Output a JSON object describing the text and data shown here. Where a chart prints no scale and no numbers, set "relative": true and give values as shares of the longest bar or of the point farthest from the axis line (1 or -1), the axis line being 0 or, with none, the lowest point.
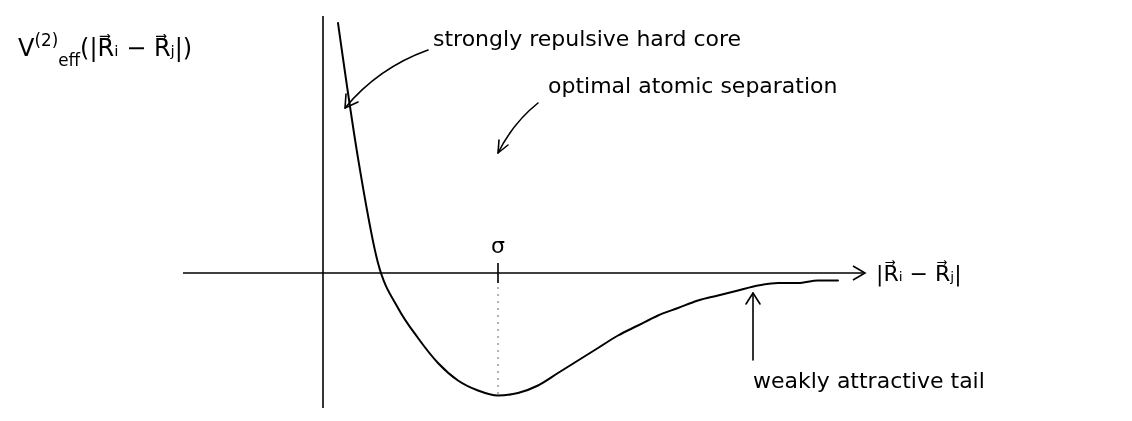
{
  "chart_data": {
    "type": "line",
    "relative": true,
    "categories": [
      null,
      null,
      null,
      null,
      null,
      null,
      null,
      null,
      null,
      null,
      null,
      null,
      null,
      null,
      null,
      null,
      null,
      null,
      null,
      null,
      null,
      null,
      null,
      null,
      null,
      null
    ],
    "series": [
      {
        "color": "#000000",
        "values": [
          1.0,
          0.46,
          0.04,
          -0.14,
          -0.26,
          -0.36,
          -0.43,
          -0.47,
          -0.49,
          -0.48,
          -0.45,
          -0.4,
          -0.35,
          -0.3,
          -0.25,
          -0.21,
          -0.17,
          -0.14,
          -0.11,
          -0.09,
          -0.07,
          -0.05,
          -0.04,
          -0.04,
          -0.03,
          -0.03
        ]
      }
    ],
    "xlabel": "|R⃗ᵢ − R⃗ⱼ|",
    "annotations": [
      "V$^{(2)}$$_{eff}$(|R⃗ᵢ − R⃗ⱼ|)",
      "σ",
      "strongly repulsive hard core",
      "optimal atomic separation",
      "weakly attractive tail"
    ]
  }
}
